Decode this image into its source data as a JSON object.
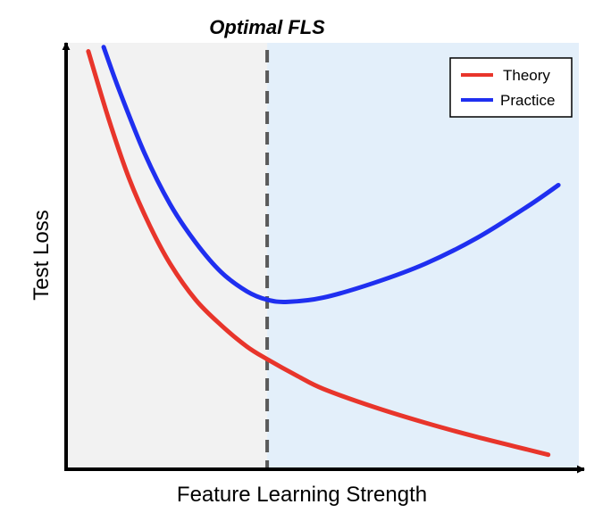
{
  "chart_data": {
    "type": "line",
    "title": "Optimal FLS",
    "xlabel": "Feature Learning Strength",
    "ylabel": "Test Loss",
    "xlim": [
      0,
      10
    ],
    "ylim": [
      0,
      10
    ],
    "grid": false,
    "legend_position": "top-right",
    "regions": [
      {
        "name": "below-optimal",
        "x_start": 0,
        "x_end": 3.9,
        "color": "#f2f2f2"
      },
      {
        "name": "above-optimal",
        "x_start": 3.9,
        "x_end": 10,
        "color": "#e3effa"
      }
    ],
    "optimal_x": 3.9,
    "series": [
      {
        "name": "Theory",
        "color": "#e8352b",
        "x": [
          0.4,
          0.8,
          1.2,
          1.6,
          2.0,
          2.5,
          3.0,
          3.5,
          3.9,
          4.5,
          5.0,
          6.0,
          7.0,
          8.0,
          9.0,
          9.4
        ],
        "y": [
          9.8,
          8.2,
          6.8,
          5.7,
          4.8,
          3.95,
          3.35,
          2.85,
          2.55,
          2.15,
          1.85,
          1.42,
          1.05,
          0.72,
          0.42,
          0.3
        ]
      },
      {
        "name": "Practice",
        "color": "#1f2ff0",
        "x": [
          0.7,
          1.0,
          1.5,
          2.0,
          2.5,
          3.0,
          3.5,
          3.9,
          4.3,
          5.0,
          6.0,
          7.0,
          8.0,
          9.0,
          9.6
        ],
        "y": [
          9.9,
          8.9,
          7.4,
          6.2,
          5.3,
          4.6,
          4.15,
          3.95,
          3.9,
          4.0,
          4.35,
          4.8,
          5.4,
          6.15,
          6.65
        ]
      }
    ]
  }
}
